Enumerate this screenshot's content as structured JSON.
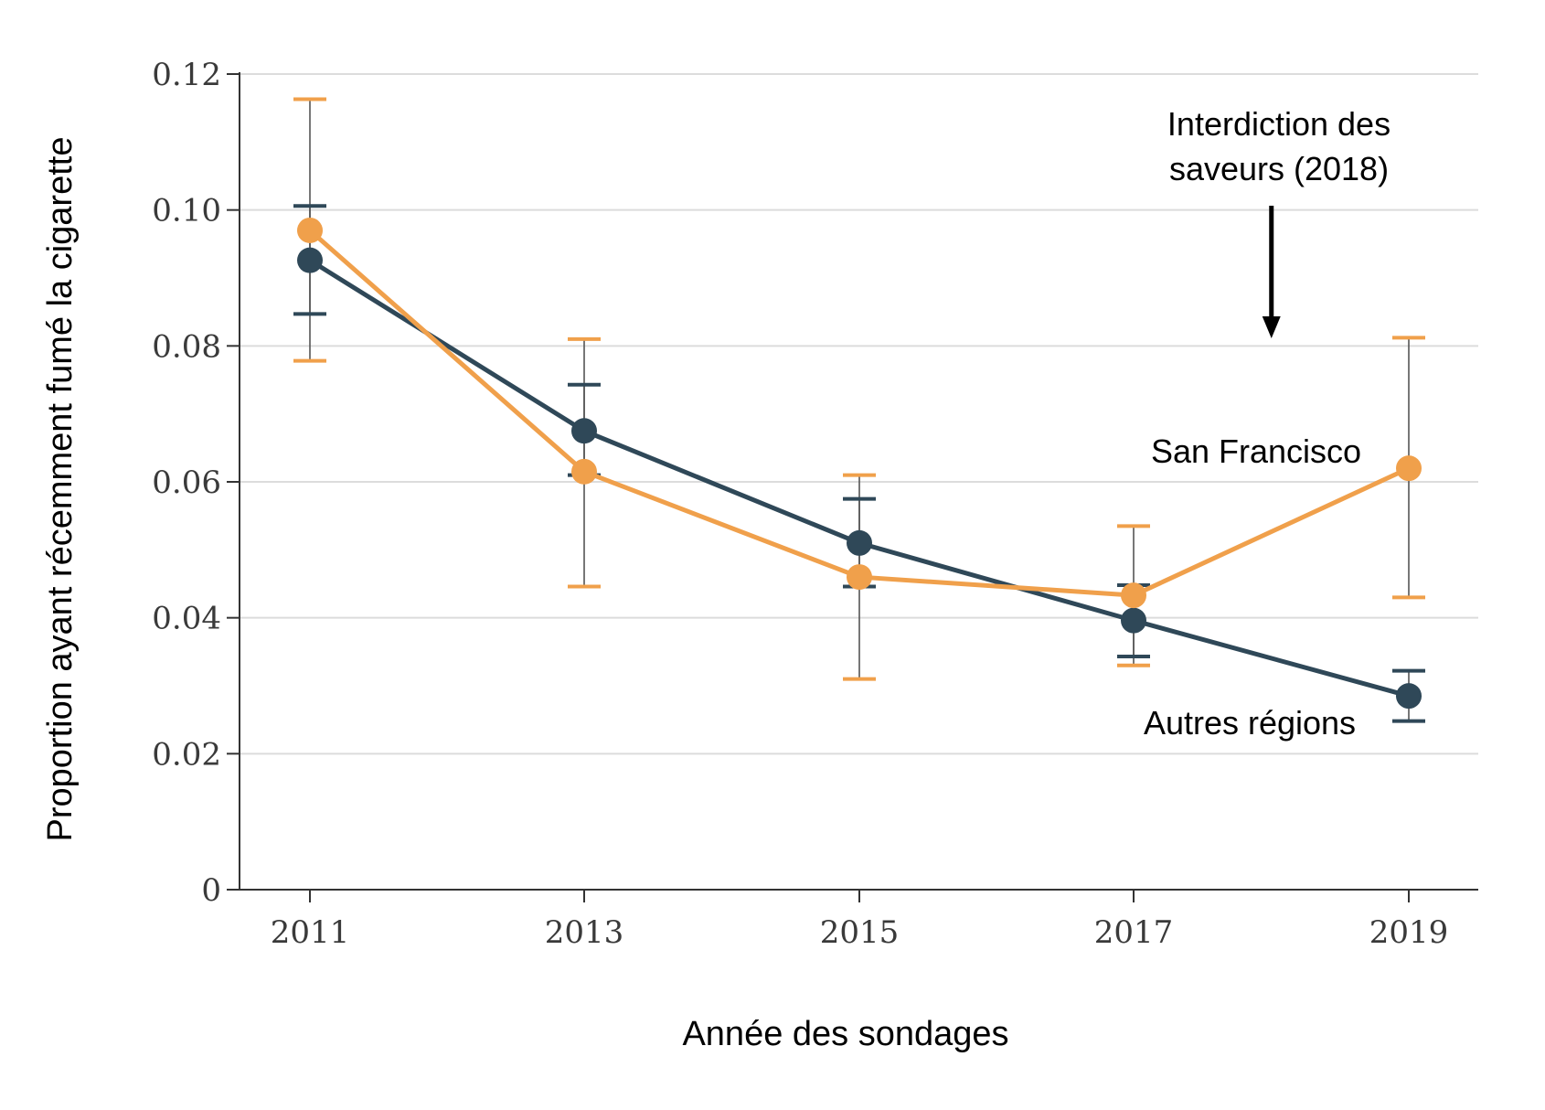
{
  "colors": {
    "san_francisco": "#f0a04b",
    "autres_regions": "#2f4858",
    "grid": "#dcdcdc",
    "axis": "#333333",
    "arrow": "#000000"
  },
  "chart_data": {
    "type": "line",
    "xlabel": "Année des sondages",
    "ylabel": "Proportion ayant récemment fumé la cigarette",
    "x": [
      2011,
      2013,
      2015,
      2017,
      2019
    ],
    "ylim": [
      0,
      0.12
    ],
    "y_ticks": [
      0,
      0.02,
      0.04,
      0.06,
      0.08,
      0.1,
      0.12
    ],
    "y_tick_labels": [
      "0",
      "0.02",
      "0.04",
      "0.06",
      "0.08",
      "0.10",
      "0.12"
    ],
    "x_tick_labels": [
      "2011",
      "2013",
      "2015",
      "2017",
      "2019"
    ],
    "grid": true,
    "series": [
      {
        "name": "San Francisco",
        "color_key": "san_francisco",
        "values": [
          0.097,
          0.0615,
          0.046,
          0.0433,
          0.062
        ],
        "ci_low": [
          0.0778,
          0.0446,
          0.031,
          0.033,
          0.043
        ],
        "ci_high": [
          0.1163,
          0.081,
          0.061,
          0.0535,
          0.0812
        ]
      },
      {
        "name": "Autres régions",
        "color_key": "autres_regions",
        "values": [
          0.0926,
          0.0675,
          0.051,
          0.0396,
          0.0285
        ],
        "ci_low": [
          0.0847,
          0.061,
          0.0446,
          0.0343,
          0.0248
        ],
        "ci_high": [
          0.1006,
          0.0743,
          0.0575,
          0.0448,
          0.0322
        ]
      }
    ],
    "annotation": {
      "lines": [
        "Interdiction des",
        "saveurs (2018)"
      ],
      "x": 2018
    }
  }
}
